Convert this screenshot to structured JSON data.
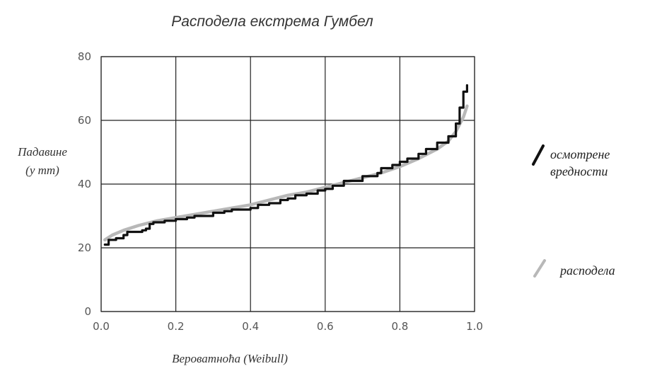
{
  "chart_data": {
    "type": "line",
    "title": "Расподела екстрема Гумбел",
    "xlabel": "Вероватноћа (Weibull)",
    "ylabel_lines": [
      "Падавине",
      "(у mm)"
    ],
    "xlim": [
      0,
      1
    ],
    "ylim": [
      0,
      80
    ],
    "xticks": [
      0,
      0.2,
      0.4,
      0.6,
      0.8,
      1
    ],
    "xtick_labels": [
      "0.0",
      "0.2",
      "0.4",
      "0.6",
      "0.8",
      "1.0"
    ],
    "yticks": [
      0,
      20,
      40,
      60,
      80
    ],
    "ytick_labels": [
      "0",
      "20",
      "40",
      "60",
      "80"
    ],
    "grid": true,
    "legend_position": "right",
    "colors": {
      "observed": "#111111",
      "distribution": "#b8b8b8"
    },
    "series": [
      {
        "name": "осмотрене вредности",
        "style": "step",
        "x": [
          0.01,
          0.02,
          0.04,
          0.06,
          0.07,
          0.11,
          0.12,
          0.13,
          0.14,
          0.17,
          0.2,
          0.23,
          0.25,
          0.3,
          0.33,
          0.35,
          0.4,
          0.42,
          0.45,
          0.48,
          0.5,
          0.52,
          0.55,
          0.58,
          0.6,
          0.62,
          0.65,
          0.7,
          0.74,
          0.75,
          0.78,
          0.8,
          0.82,
          0.85,
          0.87,
          0.9,
          0.93,
          0.95,
          0.96,
          0.97,
          0.98
        ],
        "y": [
          21,
          22.5,
          23,
          24,
          25,
          25.5,
          26,
          27.5,
          28,
          28.5,
          29,
          29.5,
          30,
          31,
          31.5,
          32,
          32.5,
          33.5,
          34,
          35,
          35.5,
          36.5,
          37,
          38,
          38.5,
          39.5,
          41,
          42.5,
          43.5,
          45,
          46,
          47,
          48,
          49.5,
          51,
          53,
          55,
          59,
          64,
          69,
          71
        ]
      },
      {
        "name": "расподела",
        "style": "smooth",
        "x": [
          0.01,
          0.03,
          0.06,
          0.1,
          0.15,
          0.2,
          0.25,
          0.3,
          0.35,
          0.4,
          0.45,
          0.5,
          0.55,
          0.6,
          0.65,
          0.7,
          0.75,
          0.8,
          0.85,
          0.9,
          0.93,
          0.95,
          0.97,
          0.98
        ],
        "y": [
          22.5,
          24,
          25.5,
          27,
          28.5,
          29.5,
          30.5,
          31.5,
          32.5,
          33.5,
          35,
          36.5,
          37.5,
          39,
          40.5,
          42,
          43.5,
          45.5,
          48,
          51,
          53.5,
          56.5,
          61,
          64.5
        ]
      }
    ]
  }
}
